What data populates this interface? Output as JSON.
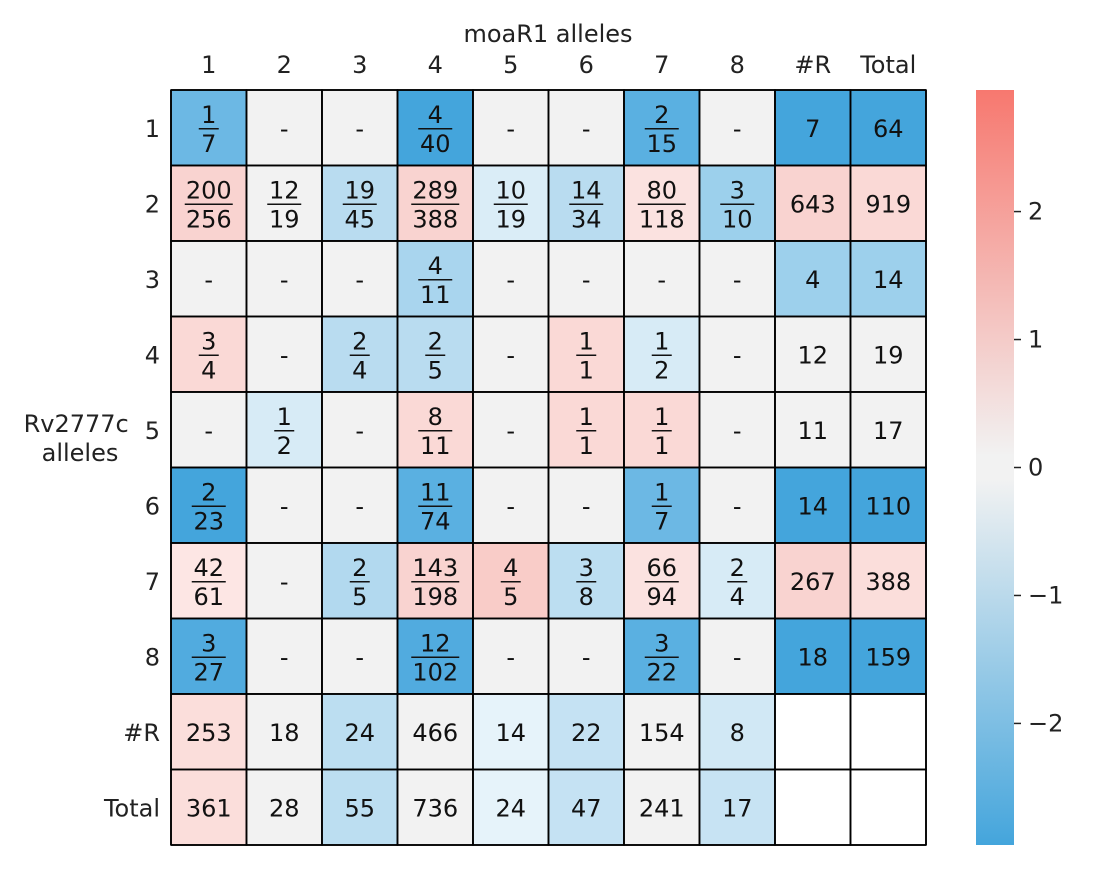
{
  "chart_data": {
    "type": "heatmap",
    "title": "moaR1 alleles",
    "xlabel": "moaR1 alleles",
    "ylabel": "Rv2777c\nalleles",
    "x_categories": [
      "1",
      "2",
      "3",
      "4",
      "5",
      "6",
      "7",
      "8",
      "#R",
      "Total"
    ],
    "y_categories": [
      "1",
      "2",
      "3",
      "4",
      "5",
      "6",
      "7",
      "8",
      "#R",
      "Total"
    ],
    "cells": [
      [
        "1/7",
        "-",
        "-",
        "4/40",
        "-",
        "-",
        "2/15",
        "-",
        "7",
        "64"
      ],
      [
        "200/256",
        "12/19",
        "19/45",
        "289/388",
        "10/19",
        "14/34",
        "80/118",
        "3/10",
        "643",
        "919"
      ],
      [
        "-",
        "-",
        "-",
        "4/11",
        "-",
        "-",
        "-",
        "-",
        "4",
        "14"
      ],
      [
        "3/4",
        "-",
        "2/4",
        "2/5",
        "-",
        "1/1",
        "1/2",
        "-",
        "12",
        "19"
      ],
      [
        "-",
        "1/2",
        "-",
        "8/11",
        "-",
        "1/1",
        "1/1",
        "-",
        "11",
        "17"
      ],
      [
        "2/23",
        "-",
        "-",
        "11/74",
        "-",
        "-",
        "1/7",
        "-",
        "14",
        "110"
      ],
      [
        "42/61",
        "-",
        "2/5",
        "143/198",
        "4/5",
        "3/8",
        "66/94",
        "2/4",
        "267",
        "388"
      ],
      [
        "3/27",
        "-",
        "-",
        "12/102",
        "-",
        "-",
        "3/22",
        "-",
        "18",
        "159"
      ],
      [
        "253",
        "18",
        "24",
        "466",
        "14",
        "22",
        "154",
        "8",
        "",
        ""
      ],
      [
        "361",
        "28",
        "55",
        "736",
        "24",
        "47",
        "241",
        "17",
        "",
        ""
      ]
    ],
    "colors": [
      [
        "#6cb8e4",
        "#f2f2f2",
        "#f2f2f2",
        "#44a5dc",
        "#f2f2f2",
        "#f2f2f2",
        "#5ab0e1",
        "#f2f2f2",
        "#44a5dc",
        "#44a5dc"
      ],
      [
        "#f9d3d0",
        "#f2f2f2",
        "#b9dcf0",
        "#f9d3d0",
        "#daedf7",
        "#b9dcf0",
        "#fbe2e0",
        "#9cd0ec",
        "#f9d3d0",
        "#fad9d6"
      ],
      [
        "#f2f2f2",
        "#f2f2f2",
        "#f2f2f2",
        "#a9d5ee",
        "#f2f2f2",
        "#f2f2f2",
        "#f2f2f2",
        "#f2f2f2",
        "#9dd0ec",
        "#9dd0ec"
      ],
      [
        "#fad9d6",
        "#f2f2f2",
        "#b9dcf0",
        "#b9dcf0",
        "#f2f2f2",
        "#fad9d6",
        "#d7ebf6",
        "#f2f2f2",
        "#f2f2f2",
        "#f2f2f2"
      ],
      [
        "#f2f2f2",
        "#d7ebf6",
        "#f2f2f2",
        "#fad9d6",
        "#f2f2f2",
        "#fad9d6",
        "#fad9d6",
        "#f2f2f2",
        "#f2f2f2",
        "#f2f2f2"
      ],
      [
        "#44a5dc",
        "#f2f2f2",
        "#f2f2f2",
        "#5ab0e1",
        "#f2f2f2",
        "#f2f2f2",
        "#6cb8e4",
        "#f2f2f2",
        "#44a5dc",
        "#44a5dc"
      ],
      [
        "#fde6e4",
        "#f2f2f2",
        "#b2d9ef",
        "#f9d3d0",
        "#f9ccc8",
        "#bcdef1",
        "#fbe2e0",
        "#d7ebf6",
        "#f9d3d0",
        "#fbdedb"
      ],
      [
        "#51abdf",
        "#f2f2f2",
        "#f2f2f2",
        "#51abdf",
        "#f2f2f2",
        "#f2f2f2",
        "#5ab0e1",
        "#f2f2f2",
        "#44a5dc",
        "#44a5dc"
      ],
      [
        "#fbdedb",
        "#f2f2f2",
        "#bcdef1",
        "#f2f2f2",
        "#e6f3fa",
        "#c5e2f3",
        "#f2f2f2",
        "#d1e8f5",
        "#ffffff",
        "#ffffff"
      ],
      [
        "#fbdedb",
        "#f2f2f2",
        "#bcdef1",
        "#f2f2f2",
        "#e6f3fa",
        "#c5e2f3",
        "#f2f2f2",
        "#c7e3f3",
        "#ffffff",
        "#ffffff"
      ]
    ],
    "colorbar": {
      "range": [
        -2.95,
        2.95
      ],
      "ticks": [
        -2,
        -1,
        0,
        1,
        2
      ],
      "tick_labels": [
        "−2",
        "−1",
        "0",
        "1",
        "2"
      ],
      "colors": {
        "low": "#44a5dc",
        "mid": "#f2f2f2",
        "high": "#f7786f"
      }
    }
  }
}
